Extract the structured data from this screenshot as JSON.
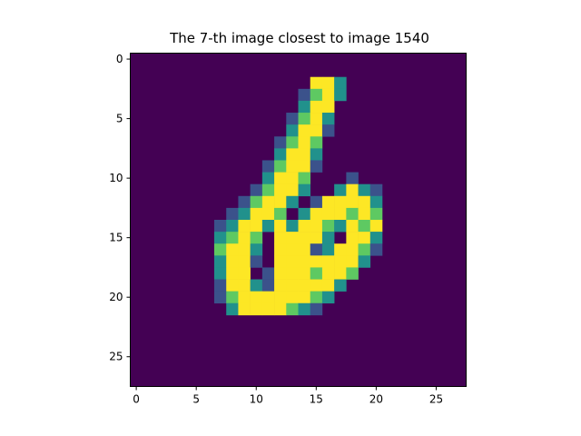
{
  "chart_data": {
    "type": "heatmap",
    "title": "The 7-th image closest to image 1540",
    "xlabel": "",
    "ylabel": "",
    "xlim": [
      -0.5,
      27.5
    ],
    "ylim": [
      27.5,
      -0.5
    ],
    "x_ticks": [
      0,
      5,
      10,
      15,
      20,
      25
    ],
    "y_ticks": [
      0,
      5,
      10,
      15,
      20,
      25
    ],
    "colormap": "viridis",
    "value_range": [
      0,
      1
    ],
    "colors": {
      "background": "#440154",
      "levels": {
        "0.2": "#3b528b",
        "0.5": "#21918c",
        "0.8": "#5ec962",
        "1.0": "#fde725"
      }
    },
    "size": [
      28,
      28
    ],
    "sparse_pixels": [
      [
        2,
        15,
        1.0
      ],
      [
        2,
        16,
        1.0
      ],
      [
        2,
        17,
        0.5
      ],
      [
        3,
        14,
        0.2
      ],
      [
        3,
        15,
        0.8
      ],
      [
        3,
        16,
        1.0
      ],
      [
        3,
        17,
        0.5
      ],
      [
        4,
        14,
        0.5
      ],
      [
        4,
        15,
        1.0
      ],
      [
        4,
        16,
        1.0
      ],
      [
        5,
        13,
        0.2
      ],
      [
        5,
        14,
        0.8
      ],
      [
        5,
        15,
        1.0
      ],
      [
        5,
        16,
        0.5
      ],
      [
        6,
        13,
        0.5
      ],
      [
        6,
        14,
        1.0
      ],
      [
        6,
        15,
        1.0
      ],
      [
        6,
        16,
        0.2
      ],
      [
        7,
        12,
        0.2
      ],
      [
        7,
        13,
        0.8
      ],
      [
        7,
        14,
        1.0
      ],
      [
        7,
        15,
        0.8
      ],
      [
        8,
        12,
        0.5
      ],
      [
        8,
        13,
        1.0
      ],
      [
        8,
        14,
        1.0
      ],
      [
        8,
        15,
        0.5
      ],
      [
        9,
        11,
        0.2
      ],
      [
        9,
        12,
        0.8
      ],
      [
        9,
        13,
        1.0
      ],
      [
        9,
        14,
        1.0
      ],
      [
        9,
        15,
        0.2
      ],
      [
        10,
        11,
        0.5
      ],
      [
        10,
        12,
        1.0
      ],
      [
        10,
        13,
        1.0
      ],
      [
        10,
        14,
        0.8
      ],
      [
        10,
        18,
        0.2
      ],
      [
        11,
        10,
        0.2
      ],
      [
        11,
        11,
        0.8
      ],
      [
        11,
        12,
        1.0
      ],
      [
        11,
        13,
        1.0
      ],
      [
        11,
        14,
        0.5
      ],
      [
        11,
        17,
        0.5
      ],
      [
        11,
        18,
        1.0
      ],
      [
        11,
        19,
        0.5
      ],
      [
        11,
        20,
        0.2
      ],
      [
        12,
        9,
        0.2
      ],
      [
        12,
        10,
        0.8
      ],
      [
        12,
        11,
        1.0
      ],
      [
        12,
        12,
        1.0
      ],
      [
        12,
        13,
        0.5
      ],
      [
        12,
        15,
        0.2
      ],
      [
        12,
        16,
        1.0
      ],
      [
        12,
        17,
        1.0
      ],
      [
        12,
        18,
        1.0
      ],
      [
        12,
        19,
        1.0
      ],
      [
        12,
        20,
        0.5
      ],
      [
        13,
        8,
        0.2
      ],
      [
        13,
        9,
        0.5
      ],
      [
        13,
        10,
        1.0
      ],
      [
        13,
        11,
        1.0
      ],
      [
        13,
        12,
        0.8
      ],
      [
        13,
        14,
        0.5
      ],
      [
        13,
        15,
        1.0
      ],
      [
        13,
        16,
        1.0
      ],
      [
        13,
        17,
        1.0
      ],
      [
        13,
        18,
        0.8
      ],
      [
        13,
        19,
        1.0
      ],
      [
        13,
        20,
        0.8
      ],
      [
        14,
        7,
        0.2
      ],
      [
        14,
        8,
        0.5
      ],
      [
        14,
        9,
        1.0
      ],
      [
        14,
        10,
        1.0
      ],
      [
        14,
        11,
        0.5
      ],
      [
        14,
        12,
        1.0
      ],
      [
        14,
        13,
        0.5
      ],
      [
        14,
        14,
        1.0
      ],
      [
        14,
        15,
        1.0
      ],
      [
        14,
        16,
        0.8
      ],
      [
        14,
        17,
        0.5
      ],
      [
        14,
        18,
        1.0
      ],
      [
        14,
        19,
        0.8
      ],
      [
        14,
        20,
        1.0
      ],
      [
        15,
        7,
        0.5
      ],
      [
        15,
        8,
        0.8
      ],
      [
        15,
        9,
        1.0
      ],
      [
        15,
        10,
        0.8
      ],
      [
        15,
        12,
        1.0
      ],
      [
        15,
        13,
        1.0
      ],
      [
        15,
        14,
        1.0
      ],
      [
        15,
        15,
        1.0
      ],
      [
        15,
        16,
        0.5
      ],
      [
        15,
        18,
        1.0
      ],
      [
        15,
        19,
        1.0
      ],
      [
        15,
        20,
        0.5
      ],
      [
        16,
        7,
        0.8
      ],
      [
        16,
        8,
        1.0
      ],
      [
        16,
        9,
        1.0
      ],
      [
        16,
        10,
        0.5
      ],
      [
        16,
        12,
        1.0
      ],
      [
        16,
        13,
        1.0
      ],
      [
        16,
        14,
        1.0
      ],
      [
        16,
        15,
        0.2
      ],
      [
        16,
        16,
        0.5
      ],
      [
        16,
        17,
        1.0
      ],
      [
        16,
        18,
        1.0
      ],
      [
        16,
        19,
        0.8
      ],
      [
        16,
        20,
        0.2
      ],
      [
        17,
        7,
        0.5
      ],
      [
        17,
        8,
        1.0
      ],
      [
        17,
        9,
        1.0
      ],
      [
        17,
        10,
        0.2
      ],
      [
        17,
        12,
        1.0
      ],
      [
        17,
        13,
        1.0
      ],
      [
        17,
        14,
        1.0
      ],
      [
        17,
        15,
        1.0
      ],
      [
        17,
        16,
        1.0
      ],
      [
        17,
        17,
        1.0
      ],
      [
        17,
        18,
        1.0
      ],
      [
        17,
        19,
        0.5
      ],
      [
        18,
        7,
        0.5
      ],
      [
        18,
        8,
        1.0
      ],
      [
        18,
        9,
        1.0
      ],
      [
        18,
        11,
        0.2
      ],
      [
        18,
        12,
        1.0
      ],
      [
        18,
        13,
        1.0
      ],
      [
        18,
        14,
        1.0
      ],
      [
        18,
        15,
        0.8
      ],
      [
        18,
        16,
        1.0
      ],
      [
        18,
        17,
        1.0
      ],
      [
        18,
        18,
        0.8
      ],
      [
        19,
        7,
        0.2
      ],
      [
        19,
        8,
        1.0
      ],
      [
        19,
        9,
        1.0
      ],
      [
        19,
        10,
        0.5
      ],
      [
        19,
        11,
        0.2
      ],
      [
        19,
        12,
        1.0
      ],
      [
        19,
        13,
        1.0
      ],
      [
        19,
        14,
        1.0
      ],
      [
        19,
        15,
        1.0
      ],
      [
        19,
        16,
        1.0
      ],
      [
        19,
        17,
        0.5
      ],
      [
        20,
        7,
        0.2
      ],
      [
        20,
        8,
        0.8
      ],
      [
        20,
        9,
        1.0
      ],
      [
        20,
        10,
        1.0
      ],
      [
        20,
        11,
        1.0
      ],
      [
        20,
        12,
        1.0
      ],
      [
        20,
        13,
        1.0
      ],
      [
        20,
        14,
        1.0
      ],
      [
        20,
        15,
        0.8
      ],
      [
        20,
        16,
        0.5
      ],
      [
        21,
        8,
        0.5
      ],
      [
        21,
        9,
        1.0
      ],
      [
        21,
        10,
        1.0
      ],
      [
        21,
        11,
        1.0
      ],
      [
        21,
        12,
        1.0
      ],
      [
        21,
        13,
        0.8
      ],
      [
        21,
        14,
        0.5
      ],
      [
        21,
        15,
        0.2
      ]
    ]
  }
}
